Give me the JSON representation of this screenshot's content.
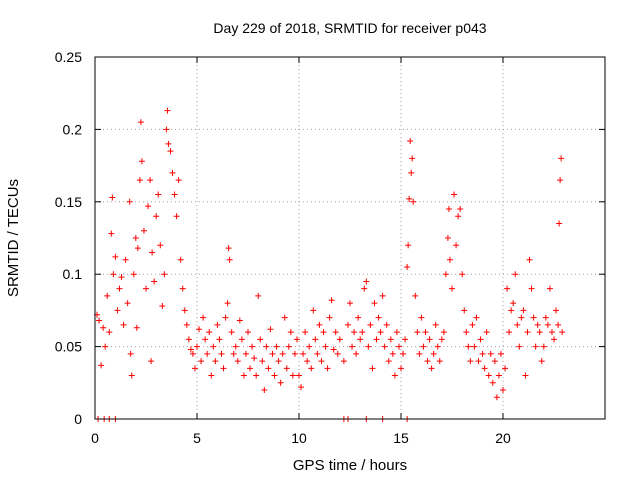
{
  "chart_data": {
    "type": "scatter",
    "title": "Day 229 of 2018, SRMTID for receiver p043",
    "xlabel": "GPS time / hours",
    "ylabel": "SRMTID / TECUs",
    "xlim": [
      0,
      25
    ],
    "ylim": [
      0,
      0.25
    ],
    "xticks": [
      0,
      5,
      10,
      15,
      20
    ],
    "xtick_labels": [
      "0",
      "5",
      "10",
      "15",
      "20"
    ],
    "yticks": [
      0,
      0.05,
      0.1,
      0.15,
      0.2,
      0.25
    ],
    "ytick_labels": [
      "0",
      "0.05",
      "0.1",
      "0.15",
      "0.2",
      "0.25"
    ],
    "grid": true,
    "marker": "+",
    "color": "#ff0000",
    "series": [
      {
        "name": "SRMTID",
        "points": [
          [
            0.1,
            0.072
          ],
          [
            0.2,
            0.068
          ],
          [
            0.3,
            0.037
          ],
          [
            0.4,
            0.063
          ],
          [
            0.5,
            0.05
          ],
          [
            0.6,
            0.085
          ],
          [
            0.7,
            0.06
          ],
          [
            0.8,
            0.128
          ],
          [
            0.85,
            0.153
          ],
          [
            0.9,
            0.1
          ],
          [
            1.0,
            0.112
          ],
          [
            1.1,
            0.075
          ],
          [
            1.2,
            0.09
          ],
          [
            1.3,
            0.098
          ],
          [
            1.4,
            0.065
          ],
          [
            1.5,
            0.11
          ],
          [
            1.6,
            0.08
          ],
          [
            1.7,
            0.15
          ],
          [
            1.75,
            0.045
          ],
          [
            1.8,
            0.03
          ],
          [
            1.9,
            0.1
          ],
          [
            2.0,
            0.125
          ],
          [
            2.05,
            0.063
          ],
          [
            2.1,
            0.118
          ],
          [
            2.2,
            0.165
          ],
          [
            2.25,
            0.205
          ],
          [
            2.3,
            0.178
          ],
          [
            2.4,
            0.13
          ],
          [
            2.5,
            0.09
          ],
          [
            2.6,
            0.147
          ],
          [
            2.7,
            0.165
          ],
          [
            2.75,
            0.04
          ],
          [
            2.8,
            0.115
          ],
          [
            2.9,
            0.095
          ],
          [
            3.0,
            0.14
          ],
          [
            3.1,
            0.155
          ],
          [
            3.2,
            0.12
          ],
          [
            3.3,
            0.078
          ],
          [
            3.4,
            0.1
          ],
          [
            3.5,
            0.2
          ],
          [
            3.55,
            0.213
          ],
          [
            3.6,
            0.19
          ],
          [
            3.7,
            0.185
          ],
          [
            3.8,
            0.17
          ],
          [
            3.9,
            0.155
          ],
          [
            4.0,
            0.14
          ],
          [
            4.1,
            0.165
          ],
          [
            4.2,
            0.11
          ],
          [
            4.3,
            0.09
          ],
          [
            4.4,
            0.075
          ],
          [
            4.5,
            0.065
          ],
          [
            4.6,
            0.055
          ],
          [
            4.7,
            0.048
          ],
          [
            4.8,
            0.045
          ],
          [
            4.9,
            0.035
          ],
          [
            5.0,
            0.05
          ],
          [
            5.1,
            0.062
          ],
          [
            5.2,
            0.04
          ],
          [
            5.3,
            0.07
          ],
          [
            5.4,
            0.055
          ],
          [
            5.5,
            0.045
          ],
          [
            5.6,
            0.06
          ],
          [
            5.7,
            0.03
          ],
          [
            5.8,
            0.05
          ],
          [
            5.9,
            0.04
          ],
          [
            6.0,
            0.065
          ],
          [
            6.1,
            0.055
          ],
          [
            6.2,
            0.045
          ],
          [
            6.3,
            0.035
          ],
          [
            6.4,
            0.07
          ],
          [
            6.5,
            0.08
          ],
          [
            6.55,
            0.118
          ],
          [
            6.6,
            0.11
          ],
          [
            6.7,
            0.06
          ],
          [
            6.8,
            0.045
          ],
          [
            6.9,
            0.05
          ],
          [
            7.0,
            0.04
          ],
          [
            7.1,
            0.068
          ],
          [
            7.2,
            0.055
          ],
          [
            7.3,
            0.03
          ],
          [
            7.4,
            0.045
          ],
          [
            7.5,
            0.06
          ],
          [
            7.6,
            0.035
          ],
          [
            7.7,
            0.05
          ],
          [
            7.8,
            0.042
          ],
          [
            7.9,
            0.03
          ],
          [
            8.0,
            0.085
          ],
          [
            8.1,
            0.055
          ],
          [
            8.2,
            0.04
          ],
          [
            8.3,
            0.02
          ],
          [
            8.4,
            0.05
          ],
          [
            8.5,
            0.035
          ],
          [
            8.6,
            0.062
          ],
          [
            8.7,
            0.045
          ],
          [
            8.8,
            0.03
          ],
          [
            8.9,
            0.05
          ],
          [
            9.0,
            0.04
          ],
          [
            9.1,
            0.025
          ],
          [
            9.2,
            0.045
          ],
          [
            9.3,
            0.07
          ],
          [
            9.4,
            0.035
          ],
          [
            9.5,
            0.05
          ],
          [
            9.6,
            0.06
          ],
          [
            9.7,
            0.03
          ],
          [
            9.8,
            0.045
          ],
          [
            9.9,
            0.055
          ],
          [
            10.0,
            0.03
          ],
          [
            10.1,
            0.022
          ],
          [
            10.2,
            0.045
          ],
          [
            10.3,
            0.06
          ],
          [
            10.4,
            0.04
          ],
          [
            10.5,
            0.05
          ],
          [
            10.6,
            0.035
          ],
          [
            10.7,
            0.075
          ],
          [
            10.8,
            0.055
          ],
          [
            10.9,
            0.045
          ],
          [
            11.0,
            0.065
          ],
          [
            11.1,
            0.04
          ],
          [
            11.2,
            0.06
          ],
          [
            11.3,
            0.05
          ],
          [
            11.4,
            0.035
          ],
          [
            11.5,
            0.07
          ],
          [
            11.6,
            0.082
          ],
          [
            11.7,
            0.048
          ],
          [
            11.8,
            0.06
          ],
          [
            11.9,
            0.045
          ],
          [
            12.0,
            0.055
          ],
          [
            12.2,
            0.04
          ],
          [
            12.4,
            0.065
          ],
          [
            12.5,
            0.08
          ],
          [
            12.6,
            0.05
          ],
          [
            12.7,
            0.06
          ],
          [
            12.8,
            0.045
          ],
          [
            12.9,
            0.07
          ],
          [
            13.0,
            0.055
          ],
          [
            13.1,
            0.06
          ],
          [
            13.2,
            0.09
          ],
          [
            13.3,
            0.095
          ],
          [
            13.4,
            0.05
          ],
          [
            13.5,
            0.065
          ],
          [
            13.6,
            0.035
          ],
          [
            13.7,
            0.08
          ],
          [
            13.8,
            0.055
          ],
          [
            13.9,
            0.07
          ],
          [
            14.0,
            0.06
          ],
          [
            14.1,
            0.085
          ],
          [
            14.2,
            0.05
          ],
          [
            14.3,
            0.065
          ],
          [
            14.4,
            0.04
          ],
          [
            14.5,
            0.055
          ],
          [
            14.6,
            0.045
          ],
          [
            14.7,
            0.03
          ],
          [
            14.8,
            0.06
          ],
          [
            14.9,
            0.05
          ],
          [
            15.0,
            0.035
          ],
          [
            15.1,
            0.045
          ],
          [
            15.2,
            0.055
          ],
          [
            15.3,
            0.105
          ],
          [
            15.35,
            0.12
          ],
          [
            15.4,
            0.152
          ],
          [
            15.45,
            0.192
          ],
          [
            15.5,
            0.17
          ],
          [
            15.55,
            0.18
          ],
          [
            15.6,
            0.15
          ],
          [
            15.7,
            0.085
          ],
          [
            15.8,
            0.06
          ],
          [
            15.9,
            0.045
          ],
          [
            16.0,
            0.07
          ],
          [
            16.1,
            0.05
          ],
          [
            16.2,
            0.06
          ],
          [
            16.3,
            0.04
          ],
          [
            16.4,
            0.055
          ],
          [
            16.5,
            0.035
          ],
          [
            16.6,
            0.045
          ],
          [
            16.7,
            0.065
          ],
          [
            16.8,
            0.05
          ],
          [
            16.9,
            0.04
          ],
          [
            17.0,
            0.055
          ],
          [
            17.1,
            0.06
          ],
          [
            17.2,
            0.1
          ],
          [
            17.3,
            0.125
          ],
          [
            17.35,
            0.145
          ],
          [
            17.4,
            0.11
          ],
          [
            17.5,
            0.09
          ],
          [
            17.6,
            0.155
          ],
          [
            17.7,
            0.12
          ],
          [
            17.8,
            0.14
          ],
          [
            17.9,
            0.145
          ],
          [
            18.0,
            0.1
          ],
          [
            18.1,
            0.075
          ],
          [
            18.2,
            0.06
          ],
          [
            18.3,
            0.05
          ],
          [
            18.4,
            0.04
          ],
          [
            18.5,
            0.065
          ],
          [
            18.6,
            0.05
          ],
          [
            18.7,
            0.07
          ],
          [
            18.8,
            0.04
          ],
          [
            18.9,
            0.055
          ],
          [
            19.0,
            0.045
          ],
          [
            19.1,
            0.035
          ],
          [
            19.2,
            0.06
          ],
          [
            19.3,
            0.03
          ],
          [
            19.4,
            0.045
          ],
          [
            19.5,
            0.025
          ],
          [
            19.6,
            0.04
          ],
          [
            19.7,
            0.015
          ],
          [
            19.8,
            0.03
          ],
          [
            19.9,
            0.045
          ],
          [
            20.0,
            0.02
          ],
          [
            20.1,
            0.035
          ],
          [
            20.2,
            0.09
          ],
          [
            20.3,
            0.06
          ],
          [
            20.4,
            0.075
          ],
          [
            20.5,
            0.08
          ],
          [
            20.6,
            0.1
          ],
          [
            20.7,
            0.065
          ],
          [
            20.8,
            0.05
          ],
          [
            20.9,
            0.07
          ],
          [
            21.0,
            0.075
          ],
          [
            21.1,
            0.03
          ],
          [
            21.2,
            0.06
          ],
          [
            21.3,
            0.11
          ],
          [
            21.4,
            0.09
          ],
          [
            21.5,
            0.07
          ],
          [
            21.6,
            0.05
          ],
          [
            21.7,
            0.065
          ],
          [
            21.8,
            0.06
          ],
          [
            21.9,
            0.04
          ],
          [
            22.0,
            0.05
          ],
          [
            22.1,
            0.07
          ],
          [
            22.2,
            0.065
          ],
          [
            22.3,
            0.09
          ],
          [
            22.4,
            0.06
          ],
          [
            22.5,
            0.055
          ],
          [
            22.6,
            0.075
          ],
          [
            22.7,
            0.065
          ],
          [
            22.75,
            0.135
          ],
          [
            22.8,
            0.165
          ],
          [
            22.85,
            0.18
          ],
          [
            22.9,
            0.06
          ],
          [
            0.15,
            0.0
          ],
          [
            0.45,
            0.0
          ],
          [
            0.7,
            0.0
          ],
          [
            1.0,
            0.0
          ],
          [
            12.2,
            0.0
          ],
          [
            12.4,
            0.0
          ],
          [
            13.3,
            0.0
          ],
          [
            14.1,
            0.0
          ],
          [
            15.3,
            0.0
          ]
        ]
      }
    ]
  }
}
